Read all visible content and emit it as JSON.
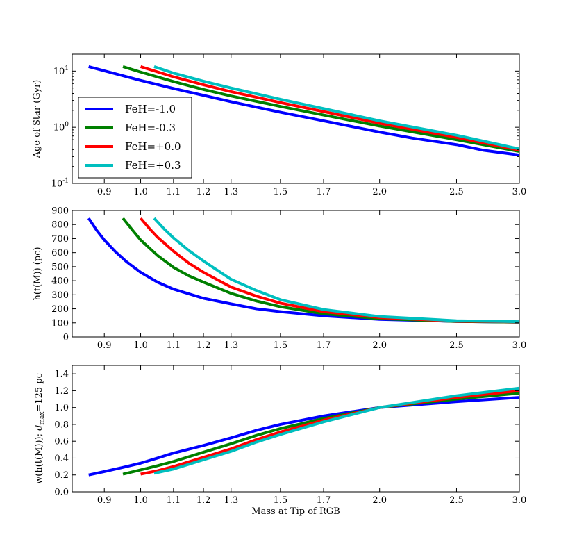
{
  "chart_data": [
    {
      "type": "line",
      "ylabel": "Age of Star (Gyr)",
      "yscale": "log",
      "ylim": [
        0.1,
        20
      ],
      "xscale": "log",
      "xlim": [
        0.82,
        3.0
      ],
      "xticks": [
        0.9,
        1.0,
        1.1,
        1.2,
        1.3,
        1.5,
        1.7,
        2.0,
        2.5,
        3.0
      ],
      "xtick_labels": [
        "0.9",
        "1.0",
        "1.1",
        "1.2",
        "1.3",
        "1.5",
        "1.7",
        "2.0",
        "2.5",
        "3.0"
      ],
      "yticks": [
        0.1,
        1,
        10
      ],
      "ytick_labels": [
        "10^{-1}",
        "10^{0}",
        "10^{1}"
      ],
      "legend": {
        "location": "lower-left",
        "entries": [
          "FeH=-1.0",
          "FeH=-0.3",
          "FeH=+0.0",
          "FeH=+0.3"
        ]
      },
      "series": [
        {
          "name": "FeH=-1.0",
          "color": "#0000ff",
          "x": [
            0.86,
            0.9,
            1.0,
            1.1,
            1.2,
            1.3,
            1.5,
            1.7,
            2.0,
            2.2,
            2.5,
            2.7,
            3.0
          ],
          "y": [
            12.0,
            10.1,
            6.8,
            4.9,
            3.7,
            2.85,
            1.85,
            1.3,
            0.82,
            0.64,
            0.49,
            0.39,
            0.32
          ]
        },
        {
          "name": "FeH=-0.3",
          "color": "#008000",
          "x": [
            0.95,
            1.0,
            1.1,
            1.2,
            1.3,
            1.5,
            1.7,
            2.0,
            2.5,
            3.0
          ],
          "y": [
            12.0,
            9.6,
            6.5,
            4.7,
            3.6,
            2.35,
            1.65,
            1.05,
            0.6,
            0.37
          ]
        },
        {
          "name": "FeH=+0.0",
          "color": "#ff0000",
          "x": [
            1.0,
            1.1,
            1.2,
            1.3,
            1.5,
            1.7,
            2.0,
            2.5,
            3.0
          ],
          "y": [
            12.0,
            7.9,
            5.7,
            4.3,
            2.75,
            1.9,
            1.18,
            0.66,
            0.39
          ]
        },
        {
          "name": "FeH=+0.3",
          "color": "#00bfbf",
          "x": [
            1.04,
            1.1,
            1.2,
            1.3,
            1.5,
            1.7,
            2.0,
            2.5,
            3.0
          ],
          "y": [
            12.0,
            9.2,
            6.6,
            5.0,
            3.15,
            2.15,
            1.3,
            0.72,
            0.41
          ]
        }
      ]
    },
    {
      "type": "line",
      "ylabel": "h(t(M)) (pc)",
      "yscale": "linear",
      "ylim": [
        0,
        900
      ],
      "xscale": "log",
      "xlim": [
        0.82,
        3.0
      ],
      "xticks": [
        0.9,
        1.0,
        1.1,
        1.2,
        1.3,
        1.5,
        1.7,
        2.0,
        2.5,
        3.0
      ],
      "xtick_labels": [
        "0.9",
        "1.0",
        "1.1",
        "1.2",
        "1.3",
        "1.5",
        "1.7",
        "2.0",
        "2.5",
        "3.0"
      ],
      "yticks": [
        0,
        100,
        200,
        300,
        400,
        500,
        600,
        700,
        800,
        900
      ],
      "ytick_labels": [
        "0",
        "100",
        "200",
        "300",
        "400",
        "500",
        "600",
        "700",
        "800",
        "900"
      ],
      "series": [
        {
          "name": "FeH=-1.0",
          "color": "#0000ff",
          "x": [
            0.86,
            0.88,
            0.9,
            0.93,
            0.96,
            1.0,
            1.05,
            1.1,
            1.2,
            1.3,
            1.4,
            1.5,
            1.7,
            2.0,
            2.5,
            3.0
          ],
          "y": [
            845,
            760,
            690,
            605,
            535,
            460,
            390,
            340,
            275,
            235,
            200,
            180,
            150,
            125,
            110,
            105
          ]
        },
        {
          "name": "FeH=-0.3",
          "color": "#008000",
          "x": [
            0.95,
            0.98,
            1.0,
            1.05,
            1.1,
            1.15,
            1.2,
            1.3,
            1.4,
            1.5,
            1.7,
            2.0,
            2.5,
            3.0
          ],
          "y": [
            845,
            750,
            690,
            580,
            495,
            435,
            390,
            310,
            255,
            215,
            165,
            130,
            110,
            105
          ]
        },
        {
          "name": "FeH=+0.0",
          "color": "#ff0000",
          "x": [
            1.0,
            1.03,
            1.05,
            1.1,
            1.15,
            1.2,
            1.3,
            1.4,
            1.5,
            1.7,
            2.0,
            2.5,
            3.0
          ],
          "y": [
            845,
            760,
            710,
            610,
            525,
            460,
            355,
            290,
            240,
            180,
            138,
            112,
            107
          ]
        },
        {
          "name": "FeH=+0.3",
          "color": "#00bfbf",
          "x": [
            1.04,
            1.07,
            1.1,
            1.15,
            1.2,
            1.3,
            1.4,
            1.5,
            1.7,
            2.0,
            2.5,
            3.0
          ],
          "y": [
            845,
            770,
            705,
            615,
            540,
            410,
            330,
            265,
            195,
            145,
            115,
            108
          ]
        }
      ]
    },
    {
      "type": "line",
      "ylabel": "w(h(t(M))); d_max=125 pc",
      "xlabel": "Mass at Tip of RGB",
      "yscale": "linear",
      "ylim": [
        0.0,
        1.5
      ],
      "xscale": "log",
      "xlim": [
        0.82,
        3.0
      ],
      "xticks": [
        0.9,
        1.0,
        1.1,
        1.2,
        1.3,
        1.5,
        1.7,
        2.0,
        2.5,
        3.0
      ],
      "xtick_labels": [
        "0.9",
        "1.0",
        "1.1",
        "1.2",
        "1.3",
        "1.5",
        "1.7",
        "2.0",
        "2.5",
        "3.0"
      ],
      "yticks": [
        0.0,
        0.2,
        0.4,
        0.6,
        0.8,
        1.0,
        1.2,
        1.4
      ],
      "ytick_labels": [
        "0.0",
        "0.2",
        "0.4",
        "0.6",
        "0.8",
        "1.0",
        "1.2",
        "1.4"
      ],
      "series": [
        {
          "name": "FeH=-1.0",
          "color": "#0000ff",
          "x": [
            0.86,
            0.9,
            0.95,
            1.0,
            1.05,
            1.1,
            1.2,
            1.3,
            1.4,
            1.5,
            1.7,
            2.0,
            2.5,
            3.0
          ],
          "y": [
            0.2,
            0.24,
            0.29,
            0.34,
            0.4,
            0.46,
            0.55,
            0.64,
            0.73,
            0.8,
            0.9,
            1.0,
            1.07,
            1.12
          ]
        },
        {
          "name": "FeH=-0.3",
          "color": "#008000",
          "x": [
            0.95,
            1.0,
            1.05,
            1.1,
            1.2,
            1.3,
            1.4,
            1.5,
            1.7,
            2.0,
            2.5,
            3.0
          ],
          "y": [
            0.21,
            0.26,
            0.31,
            0.36,
            0.47,
            0.57,
            0.67,
            0.75,
            0.87,
            1.0,
            1.1,
            1.17
          ]
        },
        {
          "name": "FeH=+0.0",
          "color": "#ff0000",
          "x": [
            1.0,
            1.05,
            1.1,
            1.2,
            1.3,
            1.4,
            1.5,
            1.7,
            2.0,
            2.5,
            3.0
          ],
          "y": [
            0.21,
            0.25,
            0.3,
            0.41,
            0.51,
            0.62,
            0.71,
            0.85,
            1.0,
            1.12,
            1.2
          ]
        },
        {
          "name": "FeH=+0.3",
          "color": "#00bfbf",
          "x": [
            1.04,
            1.1,
            1.2,
            1.3,
            1.4,
            1.5,
            1.7,
            2.0,
            2.5,
            3.0
          ],
          "y": [
            0.22,
            0.27,
            0.38,
            0.48,
            0.59,
            0.68,
            0.83,
            1.0,
            1.14,
            1.23
          ]
        }
      ]
    }
  ]
}
